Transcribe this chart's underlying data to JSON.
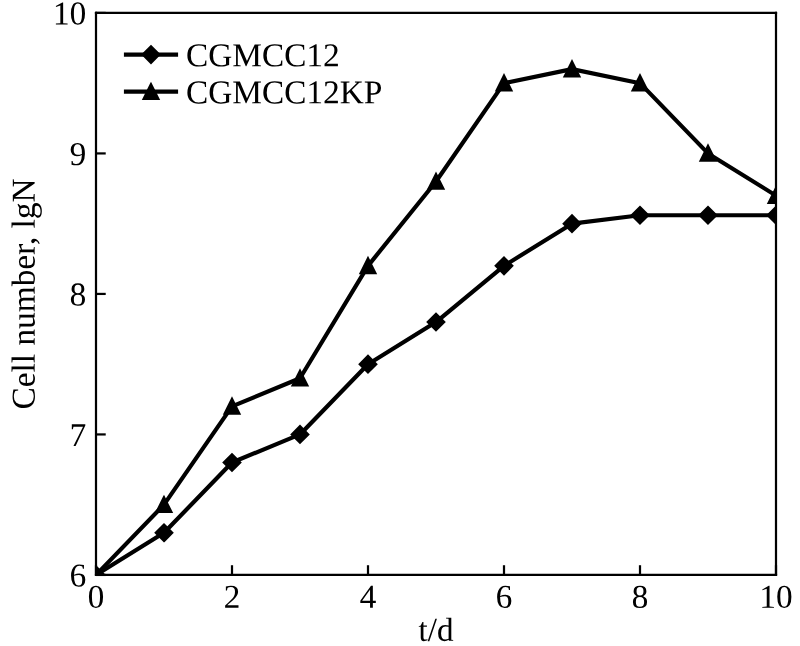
{
  "chart_data": {
    "type": "line",
    "xlabel": "t/d",
    "ylabel": "Cell number, lgN",
    "x": [
      0,
      1,
      2,
      3,
      4,
      5,
      6,
      7,
      8,
      9,
      10
    ],
    "series": [
      {
        "name": "CGMCC12",
        "color": "#000000",
        "marker": "diamond",
        "values": [
          6.0,
          6.3,
          6.8,
          7.0,
          7.5,
          7.8,
          8.2,
          8.5,
          8.56,
          8.56,
          8.56
        ]
      },
      {
        "name": "CGMCC12KP",
        "color": "#000000",
        "marker": "triangle",
        "values": [
          6.0,
          6.5,
          7.2,
          7.4,
          8.2,
          8.8,
          9.5,
          9.6,
          9.5,
          9.0,
          8.7
        ]
      }
    ],
    "xlim": [
      0,
      10
    ],
    "ylim": [
      6,
      10
    ],
    "xticks": [
      0,
      2,
      4,
      6,
      8,
      10
    ],
    "yticks": [
      6,
      7,
      8,
      9,
      10
    ],
    "grid": false,
    "legend": "top left",
    "line_style": "solid"
  }
}
